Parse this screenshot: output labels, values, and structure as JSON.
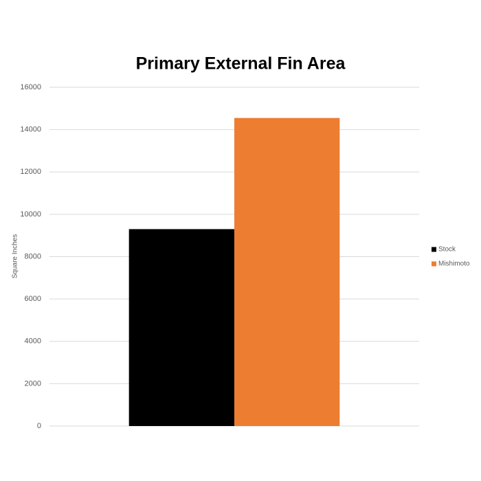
{
  "chart_data": {
    "type": "bar",
    "title": "Primary External Fin Area",
    "y_label": "Square Inches",
    "categories": [
      null
    ],
    "series": [
      {
        "name": "Stock",
        "color": "#000000",
        "values": [
          9300
        ]
      },
      {
        "name": "Mishimoto",
        "color": "#ed7d31",
        "values": [
          14550
        ]
      }
    ],
    "ylim": [
      0,
      16000
    ],
    "yticks": [
      0,
      2000,
      4000,
      6000,
      8000,
      10000,
      12000,
      14000,
      16000
    ],
    "grid": true,
    "legend": "right"
  }
}
